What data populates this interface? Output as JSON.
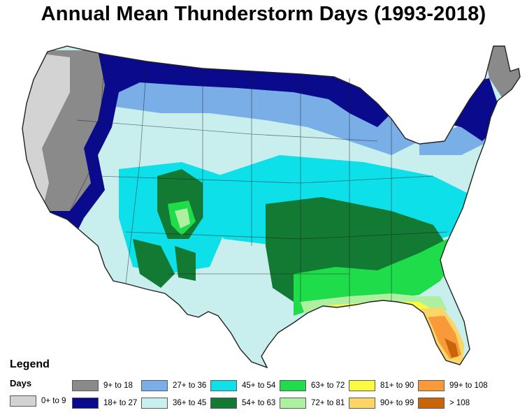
{
  "title": "Annual Mean Thunderstorm Days (1993-2018)",
  "legend": {
    "title": "Legend",
    "subtitle": "Days",
    "items": [
      {
        "label": "0+ to 9",
        "color": "#d3d3d3"
      },
      {
        "label": "9+ to 18",
        "color": "#8a8a8a"
      },
      {
        "label": "18+ to 27",
        "color": "#0a0a8c"
      },
      {
        "label": "27+ to 36",
        "color": "#7aaee6"
      },
      {
        "label": "36+ to 45",
        "color": "#c9eeee"
      },
      {
        "label": "45+ to 54",
        "color": "#0ee0ea"
      },
      {
        "label": "54+ to 63",
        "color": "#127a32"
      },
      {
        "label": "63+ to 72",
        "color": "#1edc4a"
      },
      {
        "label": "72+ to 81",
        "color": "#aef0a0"
      },
      {
        "label": "81+ to 90",
        "color": "#fafa40"
      },
      {
        "label": "90+ to 99",
        "color": "#fcd664"
      },
      {
        "label": "99+ to 108",
        "color": "#f89a3a"
      },
      {
        "label": "> 108",
        "color": "#c8640a"
      }
    ]
  }
}
